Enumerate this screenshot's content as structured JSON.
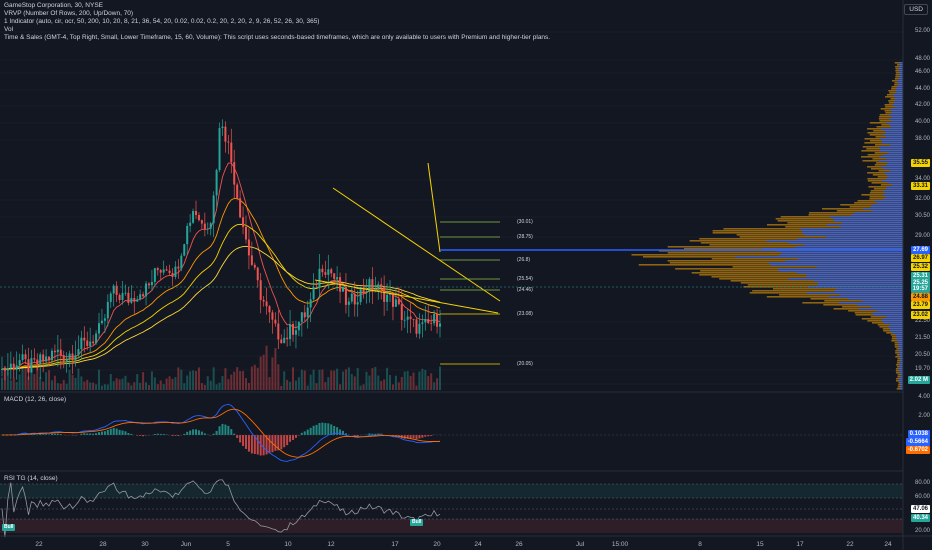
{
  "header": {
    "title": "GameStop Corporation, 30, NYSE",
    "indicator_vrvp": "VRVP (Number Of Rows, 200, Up/Down, 70)",
    "indicator_count": "1 Indicator (auto, cir, ocr, 50, 200, 10, 20, 8, 21, 36, 54, 20, 0.02, 0.02, 0.2, 20, 2, 20, 2, 9, 26, 52, 26, 30, 365)",
    "indicator_vol": "Vol",
    "time_sales": "Time & Sales (GMT-4, Top Right, Small, Lower Timeframe, 15, 60, Volume): This script uses seconds-based timeframes, which are only available to users with Premium and higher-tier plans.",
    "currency": "USD"
  },
  "price_axis": [
    "52.00",
    "48.00",
    "46.00",
    "44.00",
    "42.00",
    "40.00",
    "38.00",
    "34.00",
    "32.00",
    "30.50",
    "29.00",
    "22.50",
    "21.50",
    "20.50",
    "19.70",
    "18.80"
  ],
  "price_tags": [
    {
      "label": "35.55",
      "bg": "#f5d300",
      "fg": "#131722"
    },
    {
      "label": "33.31",
      "bg": "#f5d300",
      "fg": "#131722"
    },
    {
      "label": "27.69",
      "bg": "#2962ff",
      "fg": "#ffffff"
    },
    {
      "label": "26.97",
      "bg": "#f5d300",
      "fg": "#131722"
    },
    {
      "label": "25.32",
      "bg": "#f5d300",
      "fg": "#131722"
    },
    {
      "label": "25.31",
      "bg": "#26a69a",
      "fg": "#ffffff"
    },
    {
      "label": "25.25",
      "bg": "#26a69a",
      "fg": "#ffffff"
    },
    {
      "label": "19:57",
      "bg": "#26a69a",
      "fg": "#ffffff"
    },
    {
      "label": "24.88",
      "bg": "#ff9800",
      "fg": "#131722"
    },
    {
      "label": "23.79",
      "bg": "#f5d300",
      "fg": "#131722"
    },
    {
      "label": "23.02",
      "bg": "#f5d300",
      "fg": "#131722"
    },
    {
      "label": "2.02 M",
      "bg": "#26a69a",
      "fg": "#ffffff"
    }
  ],
  "fib_labels": [
    "(30.01)",
    "(28.75)",
    "(26.8)",
    "(25.54)",
    "(24.46)",
    "(23.08)",
    "(20.05)"
  ],
  "macd": {
    "legend": "MACD (12, 26, close)",
    "axis": [
      "4.00",
      "2.00",
      "-2.00"
    ],
    "tags": [
      {
        "label": "0.1038",
        "bg": "#2962ff",
        "fg": "#ffffff"
      },
      {
        "label": "-0.5664",
        "bg": "#2962ff",
        "fg": "#ffffff"
      },
      {
        "label": "-0.6702",
        "bg": "#ff6d00",
        "fg": "#ffffff"
      }
    ]
  },
  "rsi": {
    "legend": "RSI TG (14, close)",
    "axis": [
      "80.00",
      "60.00",
      "20.00"
    ],
    "tags": [
      {
        "label": "47.06",
        "bg": "#ffffff",
        "fg": "#131722"
      },
      {
        "label": "40.34",
        "bg": "#26a69a",
        "fg": "#ffffff"
      }
    ],
    "bull_label": "Bull"
  },
  "x_axis": [
    "22",
    "28",
    "30",
    "Jun",
    "5",
    "10",
    "12",
    "17",
    "20",
    "24",
    "26",
    "Jul",
    "15:00",
    "8",
    "15",
    "17",
    "22",
    "24"
  ],
  "colors": {
    "bg": "#131722",
    "up": "#26a69a",
    "down": "#ef5350",
    "fib": "#f5d300",
    "profile_up": "#2962ff",
    "profile_down": "#f5a300"
  },
  "chart_data": {
    "type": "candlestick",
    "series_label": "GameStop Corporation, 30, NYSE",
    "ylim": [
      18.8,
      52
    ],
    "close_path": [
      20.2,
      20.6,
      21.1,
      20.4,
      20.9,
      21.3,
      21.9,
      21.5,
      22.1,
      22.6,
      23.2,
      24.2,
      27.5,
      27.2,
      26.8,
      27.6,
      27.9,
      29.6,
      30.1,
      29.4,
      32.8,
      35.5,
      33.8,
      34.6,
      44.2,
      40.5,
      35.6,
      31.4,
      28.2,
      25.8,
      23.8,
      23.2,
      24.3,
      25.1,
      26.8,
      30.2,
      29.5,
      27.8,
      26.2,
      27.4,
      28.1,
      27.9,
      27.3,
      26.6,
      25.1,
      24.4,
      24.1,
      24.6,
      25.25
    ]
  }
}
